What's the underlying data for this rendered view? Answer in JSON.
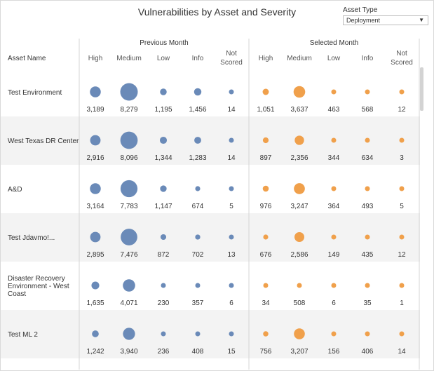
{
  "title": "Vulnerabilities by Asset and Severity",
  "filter": {
    "label": "Asset Type",
    "value": "Deployment"
  },
  "chart_data": {
    "type": "scatter",
    "title": "Vulnerabilities by Asset and Severity",
    "row_header": "Asset Name",
    "groups": [
      {
        "name": "Previous Month",
        "color": "#6a8ab8"
      },
      {
        "name": "Selected Month",
        "color": "#f0a04b"
      }
    ],
    "severities": [
      {
        "line1": "High",
        "line2": ""
      },
      {
        "line1": "Medium",
        "line2": ""
      },
      {
        "line1": "Low",
        "line2": ""
      },
      {
        "line1": "Info",
        "line2": ""
      },
      {
        "line1": "Not",
        "line2": "Scored"
      }
    ],
    "rows": [
      {
        "asset": [
          "Test Environment"
        ],
        "previous": [
          3189,
          8279,
          1195,
          1456,
          14
        ],
        "selected": [
          1051,
          3637,
          463,
          568,
          12
        ]
      },
      {
        "asset": [
          "West Texas DR Center"
        ],
        "previous": [
          2916,
          8096,
          1344,
          1283,
          14
        ],
        "selected": [
          897,
          2356,
          344,
          634,
          3
        ]
      },
      {
        "asset": [
          "A&D"
        ],
        "previous": [
          3164,
          7783,
          1147,
          674,
          5
        ],
        "selected": [
          976,
          3247,
          364,
          493,
          5
        ]
      },
      {
        "asset": [
          "Test Jdavmo!..."
        ],
        "previous": [
          2895,
          7476,
          872,
          702,
          13
        ],
        "selected": [
          676,
          2586,
          149,
          435,
          12
        ]
      },
      {
        "asset": [
          "Disaster Recovery",
          "Environment - West",
          "Coast"
        ],
        "previous": [
          1635,
          4071,
          230,
          357,
          6
        ],
        "selected": [
          34,
          508,
          6,
          35,
          1
        ]
      },
      {
        "asset": [
          "Test ML 2"
        ],
        "previous": [
          1242,
          3940,
          236,
          408,
          15
        ],
        "selected": [
          756,
          3207,
          156,
          406,
          14
        ]
      }
    ]
  }
}
